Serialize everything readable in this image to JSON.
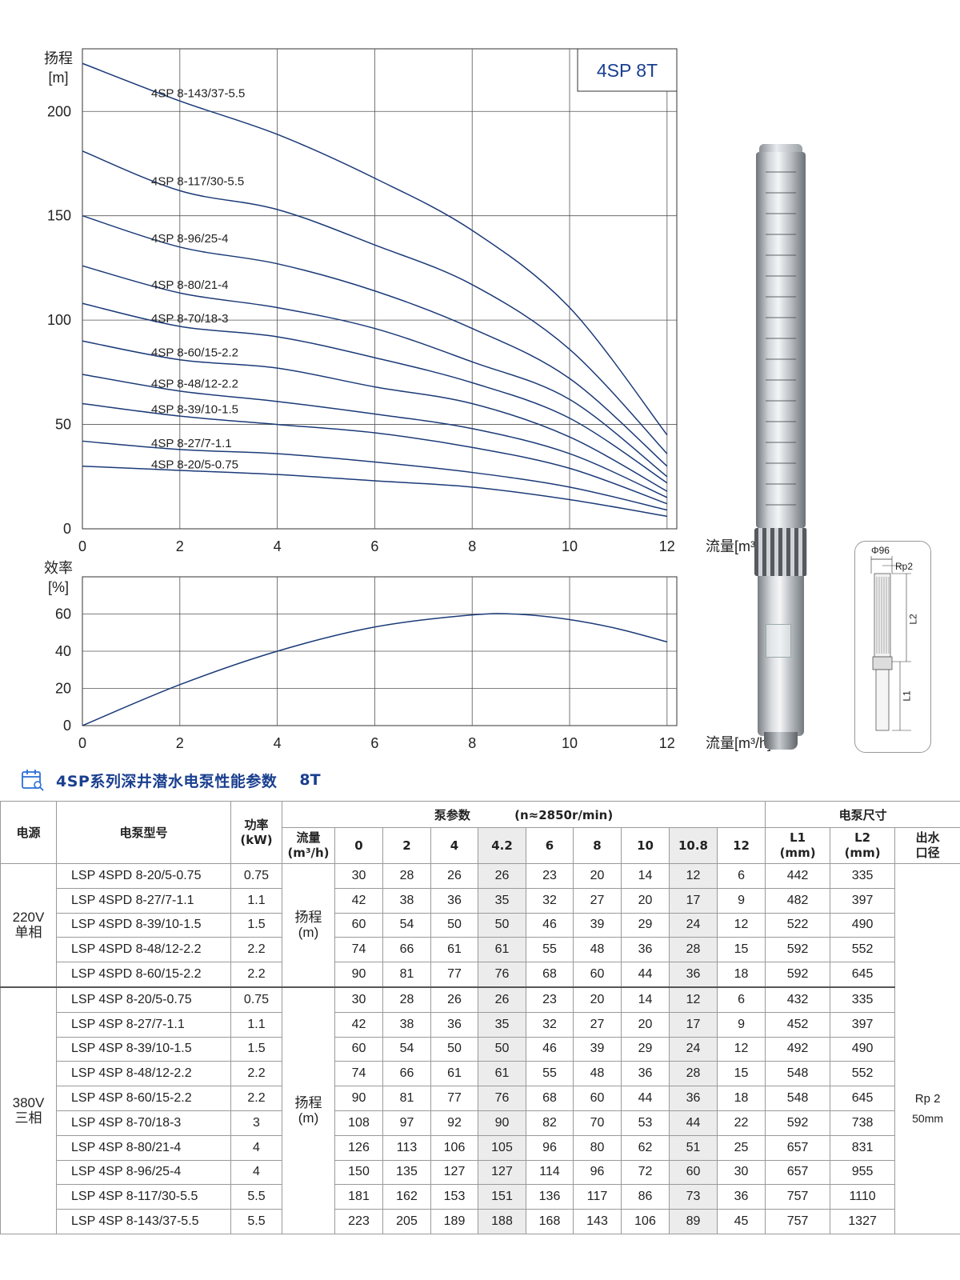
{
  "chart_data": [
    {
      "type": "line",
      "title": "",
      "model_box": "4SP 8T",
      "ylabel_line1": "扬程",
      "ylabel_line2": "[m]",
      "xlabel": "流量[m³/h]",
      "xlim": [
        0,
        12.2
      ],
      "ylim": [
        0,
        230
      ],
      "xticks": [
        "0",
        "2",
        "4",
        "6",
        "8",
        "10",
        "12"
      ],
      "yticks": [
        "0",
        "50",
        "100",
        "150",
        "200"
      ],
      "x": [
        0,
        2,
        4,
        6,
        8,
        10,
        12
      ],
      "series": [
        {
          "name": "4SP 8-143/37-5.5",
          "values": [
            223,
            205,
            189,
            168,
            143,
            106,
            45
          ]
        },
        {
          "name": "4SP 8-117/30-5.5",
          "values": [
            181,
            162,
            153,
            136,
            117,
            86,
            36
          ]
        },
        {
          "name": "4SP 8-96/25-4",
          "values": [
            150,
            135,
            127,
            114,
            96,
            72,
            30
          ]
        },
        {
          "name": "4SP 8-80/21-4",
          "values": [
            126,
            113,
            106,
            96,
            80,
            62,
            25
          ]
        },
        {
          "name": "4SP 8-70/18-3",
          "values": [
            108,
            97,
            92,
            82,
            70,
            53,
            22
          ]
        },
        {
          "name": "4SP 8-60/15-2.2",
          "values": [
            90,
            81,
            77,
            68,
            60,
            44,
            18
          ]
        },
        {
          "name": "4SP 8-48/12-2.2",
          "values": [
            74,
            66,
            61,
            55,
            48,
            36,
            15
          ]
        },
        {
          "name": "4SP 8-39/10-1.5",
          "values": [
            60,
            54,
            50,
            46,
            39,
            29,
            12
          ]
        },
        {
          "name": "4SP 8-27/7-1.1",
          "values": [
            42,
            38,
            36,
            32,
            27,
            20,
            9
          ]
        },
        {
          "name": "4SP 8-20/5-0.75",
          "values": [
            30,
            28,
            26,
            23,
            20,
            14,
            6
          ]
        }
      ],
      "grid": true,
      "line_color": "#1b3a78"
    },
    {
      "type": "line",
      "title": "",
      "ylabel_line1": "效率",
      "ylabel_line2": "[%]",
      "xlabel": "流量[m³/h]",
      "xlim": [
        0,
        12.2
      ],
      "ylim": [
        0,
        80
      ],
      "xticks": [
        "0",
        "2",
        "4",
        "6",
        "8",
        "10",
        "12"
      ],
      "yticks": [
        "0",
        "20",
        "40",
        "60"
      ],
      "series": [
        {
          "x": [
            0,
            2,
            4,
            6,
            8,
            9,
            10,
            11,
            12
          ],
          "values": [
            0,
            22,
            40,
            53,
            59.5,
            59.8,
            57,
            52,
            45
          ]
        }
      ],
      "grid": true,
      "line_color": "#1b3a78"
    }
  ],
  "dimension_drawing": {
    "diameter": "Φ96",
    "outlet": "Rp2",
    "l1": "L1",
    "l2": "L2"
  },
  "section": {
    "title": "4SP系列深井潜水电泵性能参数",
    "suffix": "8T"
  },
  "table": {
    "h_power_source": "电源",
    "h_model": "电泵型号",
    "h_power": "功率(kW)",
    "h_power_l1": "功率",
    "h_power_l2": "(kW)",
    "h_pump_params": "泵参数",
    "h_speed": "(n≈2850r/min)",
    "h_dims": "电泵尺寸",
    "h_flow_l1": "流量",
    "h_flow_l2": "(m³/h)",
    "flow_points": [
      "0",
      "2",
      "4",
      "4.2",
      "6",
      "8",
      "10",
      "10.8",
      "12"
    ],
    "h_l1_l1": "L1",
    "h_l1_l2": "(mm)",
    "h_l2_l1": "L2",
    "h_l2_l2": "(mm)",
    "h_outlet_l1": "出水",
    "h_outlet_l2": "口径",
    "head_label_l1": "扬程",
    "head_label_l2": "(m)",
    "outlet_value_l1": "Rp 2",
    "outlet_value_l2": "50mm",
    "groups": [
      {
        "source_l1": "220V",
        "source_l2": "单相",
        "rows": [
          {
            "model": "LSP 4SPD 8-20/5-0.75",
            "power": "0.75",
            "heads": [
              "30",
              "28",
              "26",
              "26",
              "23",
              "20",
              "14",
              "12",
              "6"
            ],
            "l1": "442",
            "l2": "335"
          },
          {
            "model": "LSP 4SPD 8-27/7-1.1",
            "power": "1.1",
            "heads": [
              "42",
              "38",
              "36",
              "35",
              "32",
              "27",
              "20",
              "17",
              "9"
            ],
            "l1": "482",
            "l2": "397"
          },
          {
            "model": "LSP 4SPD 8-39/10-1.5",
            "power": "1.5",
            "heads": [
              "60",
              "54",
              "50",
              "50",
              "46",
              "39",
              "29",
              "24",
              "12"
            ],
            "l1": "522",
            "l2": "490"
          },
          {
            "model": "LSP 4SPD 8-48/12-2.2",
            "power": "2.2",
            "heads": [
              "74",
              "66",
              "61",
              "61",
              "55",
              "48",
              "36",
              "28",
              "15"
            ],
            "l1": "592",
            "l2": "552"
          },
          {
            "model": "LSP 4SPD 8-60/15-2.2",
            "power": "2.2",
            "heads": [
              "90",
              "81",
              "77",
              "76",
              "68",
              "60",
              "44",
              "36",
              "18"
            ],
            "l1": "592",
            "l2": "645"
          }
        ]
      },
      {
        "source_l1": "380V",
        "source_l2": "三相",
        "rows": [
          {
            "model": "LSP 4SP 8-20/5-0.75",
            "power": "0.75",
            "heads": [
              "30",
              "28",
              "26",
              "26",
              "23",
              "20",
              "14",
              "12",
              "6"
            ],
            "l1": "432",
            "l2": "335"
          },
          {
            "model": "LSP 4SP 8-27/7-1.1",
            "power": "1.1",
            "heads": [
              "42",
              "38",
              "36",
              "35",
              "32",
              "27",
              "20",
              "17",
              "9"
            ],
            "l1": "452",
            "l2": "397"
          },
          {
            "model": "LSP 4SP 8-39/10-1.5",
            "power": "1.5",
            "heads": [
              "60",
              "54",
              "50",
              "50",
              "46",
              "39",
              "29",
              "24",
              "12"
            ],
            "l1": "492",
            "l2": "490"
          },
          {
            "model": "LSP 4SP 8-48/12-2.2",
            "power": "2.2",
            "heads": [
              "74",
              "66",
              "61",
              "61",
              "55",
              "48",
              "36",
              "28",
              "15"
            ],
            "l1": "548",
            "l2": "552"
          },
          {
            "model": "LSP 4SP 8-60/15-2.2",
            "power": "2.2",
            "heads": [
              "90",
              "81",
              "77",
              "76",
              "68",
              "60",
              "44",
              "36",
              "18"
            ],
            "l1": "548",
            "l2": "645"
          },
          {
            "model": "LSP 4SP 8-70/18-3",
            "power": "3",
            "heads": [
              "108",
              "97",
              "92",
              "90",
              "82",
              "70",
              "53",
              "44",
              "22"
            ],
            "l1": "592",
            "l2": "738"
          },
          {
            "model": "LSP 4SP 8-80/21-4",
            "power": "4",
            "heads": [
              "126",
              "113",
              "106",
              "105",
              "96",
              "80",
              "62",
              "51",
              "25"
            ],
            "l1": "657",
            "l2": "831"
          },
          {
            "model": "LSP 4SP 8-96/25-4",
            "power": "4",
            "heads": [
              "150",
              "135",
              "127",
              "127",
              "114",
              "96",
              "72",
              "60",
              "30"
            ],
            "l1": "657",
            "l2": "955"
          },
          {
            "model": "LSP 4SP 8-117/30-5.5",
            "power": "5.5",
            "heads": [
              "181",
              "162",
              "153",
              "151",
              "136",
              "117",
              "86",
              "73",
              "36"
            ],
            "l1": "757",
            "l2": "1110"
          },
          {
            "model": "LSP 4SP 8-143/37-5.5",
            "power": "5.5",
            "heads": [
              "223",
              "205",
              "189",
              "188",
              "168",
              "143",
              "106",
              "89",
              "45"
            ],
            "l1": "757",
            "l2": "1327"
          }
        ]
      }
    ]
  }
}
